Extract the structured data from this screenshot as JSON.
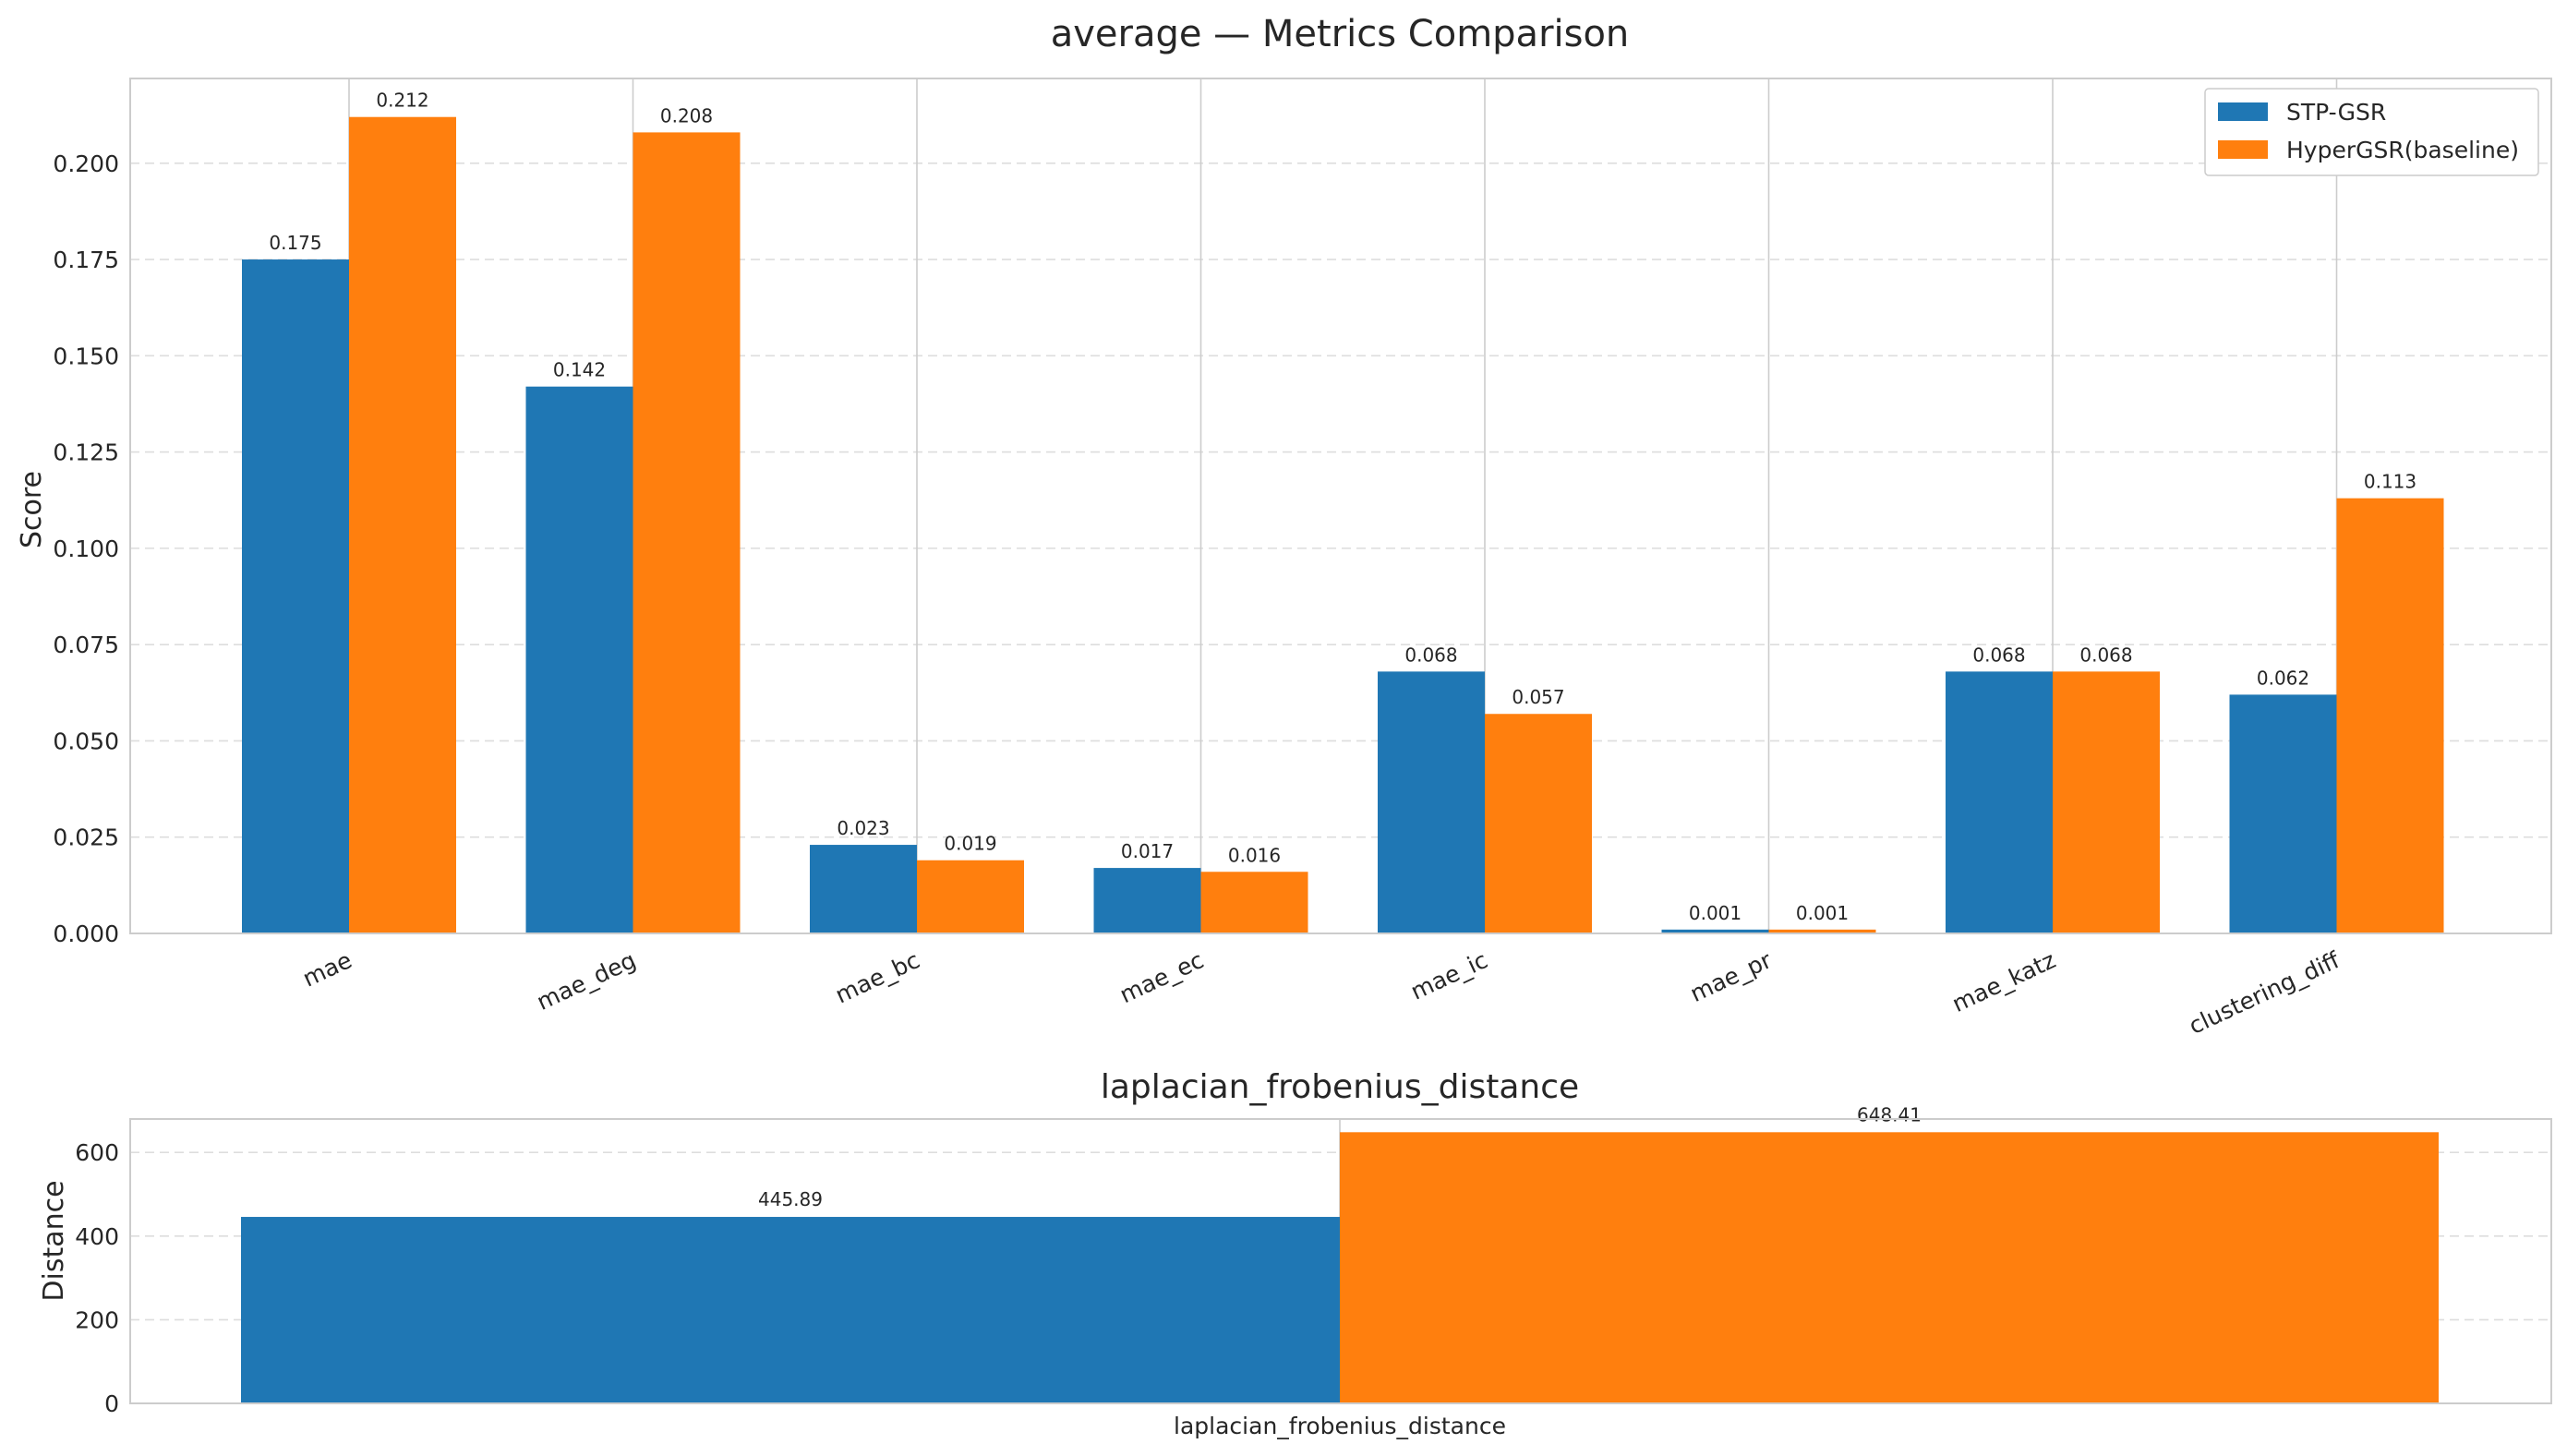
{
  "chart_data": [
    {
      "type": "bar",
      "title": "average — Metrics Comparison",
      "xlabel": "",
      "ylabel": "Score",
      "ylim": [
        0,
        0.222
      ],
      "yticks": [
        "0.000",
        "0.025",
        "0.050",
        "0.075",
        "0.100",
        "0.125",
        "0.150",
        "0.175",
        "0.200"
      ],
      "grid": true,
      "legend_position": "top-right",
      "categories": [
        "mae",
        "mae_deg",
        "mae_bc",
        "mae_ec",
        "mae_ic",
        "mae_pr",
        "mae_katz",
        "clustering_diff"
      ],
      "series": [
        {
          "name": "STP-GSR",
          "color": "#1f77b4",
          "values": [
            0.175,
            0.142,
            0.023,
            0.017,
            0.068,
            0.001,
            0.068,
            0.062
          ],
          "labels": [
            "0.175",
            "0.142",
            "0.023",
            "0.017",
            "0.068",
            "0.001",
            "0.068",
            "0.062"
          ]
        },
        {
          "name": "HyperGSR(baseline)",
          "color": "#ff7f0e",
          "values": [
            0.212,
            0.208,
            0.019,
            0.016,
            0.057,
            0.001,
            0.068,
            0.113
          ],
          "labels": [
            "0.212",
            "0.208",
            "0.019",
            "0.016",
            "0.057",
            "0.001",
            "0.068",
            "0.113"
          ]
        }
      ]
    },
    {
      "type": "bar",
      "title": "laplacian_frobenius_distance",
      "xlabel": "",
      "ylabel": "Distance",
      "ylim": [
        0,
        680
      ],
      "yticks": [
        "0",
        "200",
        "400",
        "600"
      ],
      "grid": true,
      "categories": [
        "laplacian_frobenius_distance"
      ],
      "series": [
        {
          "name": "STP-GSR",
          "color": "#1f77b4",
          "values": [
            445.89
          ],
          "labels": [
            "445.89"
          ]
        },
        {
          "name": "HyperGSR(baseline)",
          "color": "#ff7f0e",
          "values": [
            648.41
          ],
          "labels": [
            "648.41"
          ]
        }
      ]
    }
  ]
}
